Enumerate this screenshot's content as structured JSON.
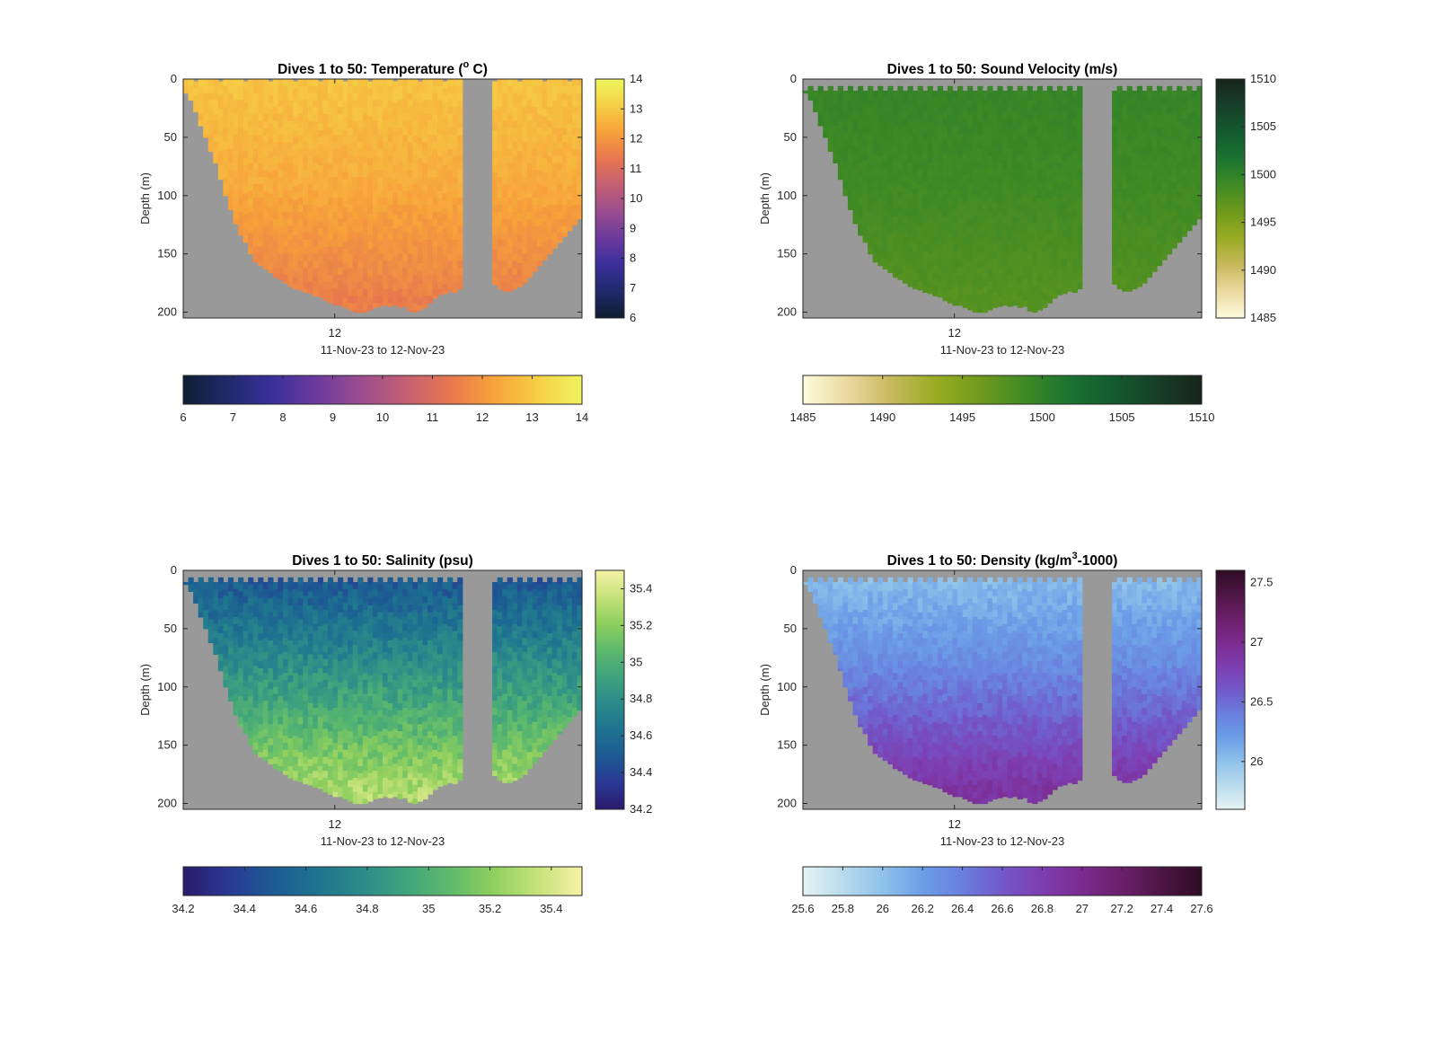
{
  "chart_data": [
    {
      "type": "heatmap",
      "id": "temperature",
      "title": "Dives 1 to 50: Temperature (",
      "title_sup": "o",
      "title_tail": " C)",
      "xlabel": "11-Nov-23 to 12-Nov-23",
      "ylabel": "Depth (m)",
      "xticks": [
        "12"
      ],
      "yticks": [
        0,
        50,
        100,
        150,
        200
      ],
      "ylim": [
        0,
        205
      ],
      "dives": [
        1,
        50
      ],
      "colorbar": {
        "min": 6,
        "max": 14,
        "ticks": [
          "6",
          "7",
          "8",
          "9",
          "10",
          "11",
          "12",
          "13",
          "14"
        ],
        "colors": [
          "#0f1d31",
          "#1f2a6b",
          "#3a2f9a",
          "#6b3a9e",
          "#9a4d8f",
          "#c45f74",
          "#e7764f",
          "#f7a23a",
          "#f6cf45",
          "#eef55e"
        ]
      },
      "dive_depth_m": [
        12,
        18,
        28,
        40,
        50,
        62,
        72,
        86,
        100,
        112,
        124,
        134,
        140,
        150,
        157,
        160,
        163,
        166,
        170,
        172,
        175,
        178,
        180,
        181,
        183,
        184,
        186,
        187,
        190,
        192,
        194,
        194,
        196,
        198,
        200,
        200,
        200,
        198,
        196,
        195,
        194,
        195,
        194,
        196,
        195,
        199,
        200,
        198,
        196,
        192,
        188,
        185,
        184,
        182,
        183,
        180,
        178,
        176,
        174,
        172,
        172,
        174,
        176,
        180,
        182,
        182,
        180,
        178,
        175,
        170,
        165,
        160,
        155,
        150,
        145,
        140,
        135,
        130,
        125,
        120
      ],
      "surface_start_m": 0,
      "data_gap": [
        0.7,
        0.77
      ],
      "mixed_layer_m": 90,
      "surface_value": 12.9,
      "deep_value": 11.5,
      "deep_ref_m": 190,
      "noise": 0.18,
      "skip_cycle": null
    },
    {
      "type": "heatmap",
      "id": "sound-velocity",
      "title": "Dives 1 to 50: Sound Velocity (m/s)",
      "title_sup": "",
      "title_tail": "",
      "xlabel": "11-Nov-23 to 12-Nov-23",
      "ylabel": "Depth (m)",
      "xticks": [
        "12"
      ],
      "yticks": [
        0,
        50,
        100,
        150,
        200
      ],
      "ylim": [
        0,
        205
      ],
      "dives": [
        1,
        50
      ],
      "colorbar": {
        "min": 1485,
        "max": 1510,
        "ticks": [
          "1485",
          "1490",
          "1495",
          "1500",
          "1505",
          "1510"
        ],
        "colors": [
          "#fdfbdc",
          "#ebd9a0",
          "#c7b85c",
          "#99ac23",
          "#6f9a1b",
          "#3f8a25",
          "#1a7330",
          "#145a30",
          "#173f28",
          "#172419"
        ]
      },
      "dive_depth_m": [
        12,
        18,
        28,
        40,
        50,
        62,
        72,
        86,
        100,
        112,
        124,
        134,
        140,
        150,
        157,
        160,
        163,
        166,
        170,
        172,
        175,
        178,
        180,
        181,
        183,
        184,
        186,
        187,
        190,
        192,
        194,
        194,
        196,
        198,
        200,
        200,
        200,
        198,
        196,
        195,
        194,
        195,
        194,
        196,
        195,
        199,
        200,
        198,
        196,
        192,
        188,
        185,
        184,
        182,
        183,
        180,
        178,
        176,
        174,
        172,
        172,
        174,
        176,
        180,
        182,
        182,
        180,
        178,
        175,
        170,
        165,
        160,
        155,
        150,
        145,
        140,
        135,
        130,
        125,
        120
      ],
      "surface_start_m": 10,
      "data_gap": [
        0.7,
        0.77
      ],
      "mixed_layer_m": 90,
      "surface_value": 1499.6,
      "deep_value": 1497.6,
      "deep_ref_m": 190,
      "noise": 0.35,
      "skip_cycle": 2
    },
    {
      "type": "heatmap",
      "id": "salinity",
      "title": "Dives 1 to 50: Salinity (psu)",
      "title_sup": "",
      "title_tail": "",
      "xlabel": "11-Nov-23 to 12-Nov-23",
      "ylabel": "Depth (m)",
      "xticks": [
        "12"
      ],
      "yticks": [
        0,
        50,
        100,
        150,
        200
      ],
      "ylim": [
        0,
        205
      ],
      "dives": [
        1,
        50
      ],
      "colorbar": {
        "min": 34.2,
        "max": 35.5,
        "ticks": [
          "34.2",
          "34.4",
          "34.6",
          "34.8",
          "35",
          "35.2",
          "35.4"
        ],
        "colors": [
          "#2a1a6b",
          "#2a3894",
          "#1d5a93",
          "#1e7390",
          "#2b8a8a",
          "#3fa37d",
          "#5eba6c",
          "#8ecf5e",
          "#c5e27a",
          "#f8f2a6"
        ]
      },
      "dive_depth_m": [
        12,
        18,
        28,
        40,
        50,
        62,
        72,
        86,
        100,
        112,
        124,
        134,
        140,
        150,
        157,
        160,
        163,
        166,
        170,
        172,
        175,
        178,
        180,
        181,
        183,
        184,
        186,
        187,
        190,
        192,
        194,
        194,
        196,
        198,
        200,
        200,
        200,
        198,
        196,
        195,
        194,
        195,
        194,
        196,
        195,
        199,
        200,
        198,
        196,
        192,
        188,
        185,
        184,
        182,
        183,
        180,
        178,
        176,
        174,
        172,
        172,
        174,
        176,
        180,
        182,
        182,
        180,
        178,
        175,
        170,
        165,
        160,
        155,
        150,
        145,
        140,
        135,
        130,
        125,
        120
      ],
      "surface_start_m": 10,
      "data_gap": [
        0.7,
        0.77
      ],
      "mixed_layer_m": 70,
      "surface_value": 34.45,
      "deep_value": 35.3,
      "deep_ref_m": 190,
      "noise": 0.09,
      "skip_cycle": 2
    },
    {
      "type": "heatmap",
      "id": "density",
      "title": "Dives 1 to 50: Density (kg/m",
      "title_sup": "3",
      "title_tail": "-1000)",
      "xlabel": "11-Nov-23 to 12-Nov-23",
      "ylabel": "Depth (m)",
      "xticks": [
        "12"
      ],
      "yticks": [
        0,
        50,
        100,
        150,
        200
      ],
      "ylim": [
        0,
        205
      ],
      "dives": [
        1,
        50
      ],
      "colorbar": {
        "min": 25.6,
        "max": 27.6,
        "ticks": [
          "25.6",
          "25.8",
          "26",
          "26.2",
          "26.4",
          "26.6",
          "26.8",
          "27",
          "27.2",
          "27.4",
          "27.6"
        ],
        "ticks_side": [
          "26",
          "26.5",
          "27",
          "27.5"
        ],
        "colors": [
          "#e5f4f4",
          "#b9dbec",
          "#8fc1ea",
          "#6b9ee7",
          "#6a7fde",
          "#7258c9",
          "#7e3db0",
          "#7b2b8f",
          "#6b1f6a",
          "#4e1545",
          "#2e0c25"
        ]
      },
      "dive_depth_m": [
        12,
        18,
        28,
        40,
        50,
        62,
        72,
        86,
        100,
        112,
        124,
        134,
        140,
        150,
        157,
        160,
        163,
        166,
        170,
        172,
        175,
        178,
        180,
        181,
        183,
        184,
        186,
        187,
        190,
        192,
        194,
        194,
        196,
        198,
        200,
        200,
        200,
        198,
        196,
        195,
        194,
        195,
        194,
        196,
        195,
        199,
        200,
        198,
        196,
        192,
        188,
        185,
        184,
        182,
        183,
        180,
        178,
        176,
        174,
        172,
        172,
        174,
        176,
        180,
        182,
        182,
        180,
        178,
        175,
        170,
        165,
        160,
        155,
        150,
        145,
        140,
        135,
        130,
        125,
        120
      ],
      "surface_start_m": 10,
      "data_gap": [
        0.7,
        0.77
      ],
      "mixed_layer_m": 80,
      "surface_value": 26.0,
      "deep_value": 26.9,
      "deep_ref_m": 190,
      "noise": 0.08,
      "skip_cycle": 2
    }
  ]
}
